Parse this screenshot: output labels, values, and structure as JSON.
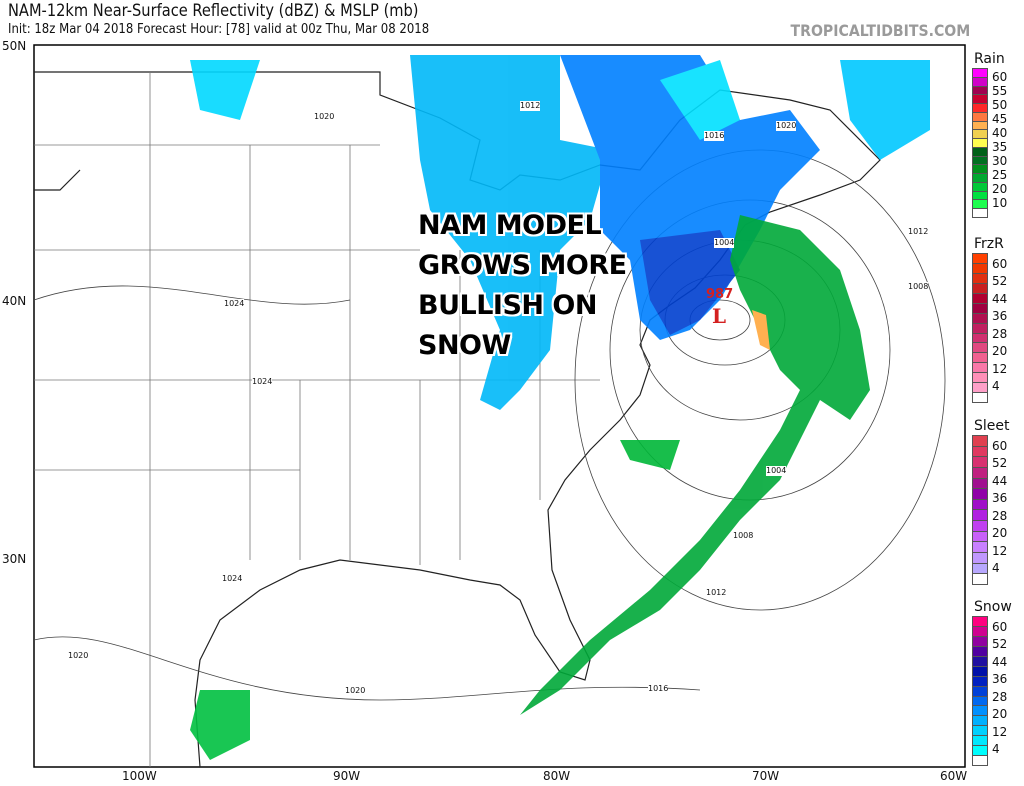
{
  "header": {
    "title": "NAM-12km Near-Surface Reflectivity (dBZ) & MSLP (mb)",
    "subtitle": "Init: 18z Mar 04 2018   Forecast Hour: [78]   valid at 00z Thu, Mar 08 2018",
    "brand": "TROPICALTIDBITS.COM"
  },
  "overlay_text": [
    "NAM MODEL",
    "GROWS MORE",
    "BULLISH ON",
    "SNOW"
  ],
  "axes": {
    "lat_labels": [
      "50N",
      "40N",
      "30N"
    ],
    "lon_labels": [
      "100W",
      "90W",
      "80W",
      "70W",
      "60W"
    ]
  },
  "low_center": {
    "symbol": "L",
    "pressure": "987",
    "color": "#d42020"
  },
  "isobar_labels": [
    "1012",
    "1020",
    "1016",
    "1020",
    "1012",
    "1004",
    "1008",
    "1024",
    "1024",
    "1004",
    "1008",
    "1012",
    "1024",
    "1020",
    "1020",
    "1016"
  ],
  "legends": [
    {
      "title": "Rain",
      "labels": [
        "60",
        "55",
        "50",
        "45",
        "40",
        "35",
        "30",
        "25",
        "20",
        "10"
      ],
      "colors": [
        "#ff00ff",
        "#d000c8",
        "#a00050",
        "#c80030",
        "#ff2828",
        "#ff7840",
        "#ffb050",
        "#f0d050",
        "#ffff50",
        "#006018",
        "#007020",
        "#00901c",
        "#00a830",
        "#00c838",
        "#00e040",
        "#20ff50",
        "#ffffff"
      ]
    },
    {
      "title": "FrzR",
      "labels": [
        "60",
        "52",
        "44",
        "36",
        "28",
        "20",
        "12",
        "4"
      ],
      "colors": [
        "#ff4000",
        "#f03800",
        "#e03010",
        "#c82020",
        "#b00030",
        "#a00040",
        "#b01050",
        "#c02060",
        "#d03070",
        "#e04880",
        "#f06090",
        "#f878a8",
        "#ff90b8",
        "#ffa0c8",
        "#ffffff"
      ]
    },
    {
      "title": "Sleet",
      "labels": [
        "60",
        "52",
        "44",
        "36",
        "28",
        "20",
        "12",
        "4"
      ],
      "colors": [
        "#e04050",
        "#e03860",
        "#d83070",
        "#c02080",
        "#a01090",
        "#9000a8",
        "#a010c8",
        "#b020e0",
        "#c040f0",
        "#c860f8",
        "#c880ff",
        "#c098ff",
        "#b8a8ff",
        "#ffffff"
      ]
    },
    {
      "title": "Snow",
      "labels": [
        "60",
        "52",
        "44",
        "36",
        "28",
        "20",
        "12",
        "4"
      ],
      "colors": [
        "#ff0080",
        "#d00090",
        "#9000a0",
        "#5000a0",
        "#2010a0",
        "#0010a8",
        "#0020c0",
        "#0040d8",
        "#0068f0",
        "#0090ff",
        "#00b0ff",
        "#00d0ff",
        "#00e8ff",
        "#00ffff",
        "#ffffff"
      ]
    }
  ]
}
